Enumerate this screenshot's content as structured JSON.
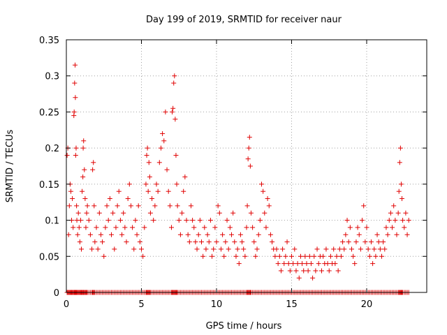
{
  "chart_data": {
    "type": "scatter",
    "title": "Day 199 of 2019, SRMTID for receiver naur",
    "xlabel": "GPS time / hours",
    "ylabel": "SRMTID / TECUs",
    "xlim": [
      0,
      24
    ],
    "ylim": [
      0,
      0.35
    ],
    "xticks": [
      0,
      5,
      10,
      15,
      20
    ],
    "xtick_labels": [
      "0",
      "5",
      "10",
      "15",
      "20"
    ],
    "yticks": [
      0,
      0.05,
      0.1,
      0.15,
      0.2,
      0.25,
      0.3,
      0.35
    ],
    "ytick_labels": [
      "0",
      "0.05",
      "0.1",
      "0.15",
      "0.2",
      "0.25",
      "0.3",
      "0.35"
    ],
    "grid": true,
    "marker": "+",
    "color": "#e00000",
    "series": [
      {
        "name": "SRMTID",
        "points": [
          [
            0.05,
            0.19
          ],
          [
            0.1,
            0.2
          ],
          [
            0.15,
            0.08
          ],
          [
            0.2,
            0.12
          ],
          [
            0.25,
            0.15
          ],
          [
            0.3,
            0.14
          ],
          [
            0.35,
            0.1
          ],
          [
            0.4,
            0.13
          ],
          [
            0.45,
            0.09
          ],
          [
            0.5,
            0.245
          ],
          [
            0.52,
            0.25
          ],
          [
            0.55,
            0.29
          ],
          [
            0.58,
            0.315
          ],
          [
            0.6,
            0.27
          ],
          [
            0.62,
            0.19
          ],
          [
            0.65,
            0.2
          ],
          [
            0.68,
            0.12
          ],
          [
            0.7,
            0.1
          ],
          [
            0.75,
            0.08
          ],
          [
            0.8,
            0.11
          ],
          [
            0.85,
            0.09
          ],
          [
            0.9,
            0.07
          ],
          [
            0.95,
            0.1
          ],
          [
            1.0,
            0.06
          ],
          [
            1.05,
            0.14
          ],
          [
            1.1,
            0.16
          ],
          [
            1.12,
            0.2
          ],
          [
            1.15,
            0.21
          ],
          [
            1.2,
            0.17
          ],
          [
            1.25,
            0.13
          ],
          [
            1.3,
            0.09
          ],
          [
            1.35,
            0.11
          ],
          [
            1.4,
            0.12
          ],
          [
            1.5,
            0.1
          ],
          [
            1.6,
            0.08
          ],
          [
            1.7,
            0.06
          ],
          [
            1.75,
            0.17
          ],
          [
            1.8,
            0.18
          ],
          [
            1.85,
            0.12
          ],
          [
            1.9,
            0.07
          ],
          [
            2.0,
            0.09
          ],
          [
            2.1,
            0.06
          ],
          [
            2.2,
            0.11
          ],
          [
            2.3,
            0.08
          ],
          [
            2.4,
            0.07
          ],
          [
            2.5,
            0.05
          ],
          [
            2.6,
            0.09
          ],
          [
            2.7,
            0.12
          ],
          [
            2.8,
            0.1
          ],
          [
            2.9,
            0.13
          ],
          [
            3.0,
            0.08
          ],
          [
            3.1,
            0.11
          ],
          [
            3.2,
            0.06
          ],
          [
            3.3,
            0.09
          ],
          [
            3.4,
            0.12
          ],
          [
            3.5,
            0.14
          ],
          [
            3.6,
            0.1
          ],
          [
            3.7,
            0.08
          ],
          [
            3.8,
            0.11
          ],
          [
            3.9,
            0.09
          ],
          [
            4.0,
            0.07
          ],
          [
            4.1,
            0.13
          ],
          [
            4.2,
            0.15
          ],
          [
            4.3,
            0.12
          ],
          [
            4.4,
            0.09
          ],
          [
            4.5,
            0.06
          ],
          [
            4.6,
            0.1
          ],
          [
            4.7,
            0.08
          ],
          [
            4.8,
            0.12
          ],
          [
            4.9,
            0.07
          ],
          [
            5.0,
            0.06
          ],
          [
            5.1,
            0.05
          ],
          [
            5.2,
            0.09
          ],
          [
            5.3,
            0.15
          ],
          [
            5.35,
            0.19
          ],
          [
            5.4,
            0.2
          ],
          [
            5.45,
            0.14
          ],
          [
            5.5,
            0.18
          ],
          [
            5.55,
            0.16
          ],
          [
            5.6,
            0.11
          ],
          [
            5.7,
            0.13
          ],
          [
            5.8,
            0.1
          ],
          [
            5.9,
            0.12
          ],
          [
            6.0,
            0.15
          ],
          [
            6.1,
            0.14
          ],
          [
            6.2,
            0.18
          ],
          [
            6.3,
            0.2
          ],
          [
            6.4,
            0.22
          ],
          [
            6.5,
            0.21
          ],
          [
            6.6,
            0.25
          ],
          [
            6.7,
            0.17
          ],
          [
            6.8,
            0.14
          ],
          [
            6.9,
            0.12
          ],
          [
            7.0,
            0.09
          ],
          [
            7.05,
            0.25
          ],
          [
            7.1,
            0.255
          ],
          [
            7.15,
            0.29
          ],
          [
            7.2,
            0.3
          ],
          [
            7.25,
            0.24
          ],
          [
            7.3,
            0.19
          ],
          [
            7.35,
            0.15
          ],
          [
            7.4,
            0.12
          ],
          [
            7.5,
            0.1
          ],
          [
            7.6,
            0.08
          ],
          [
            7.7,
            0.11
          ],
          [
            7.8,
            0.14
          ],
          [
            7.9,
            0.16
          ],
          [
            8.0,
            0.1
          ],
          [
            8.1,
            0.08
          ],
          [
            8.2,
            0.07
          ],
          [
            8.3,
            0.12
          ],
          [
            8.4,
            0.1
          ],
          [
            8.5,
            0.09
          ],
          [
            8.6,
            0.07
          ],
          [
            8.7,
            0.06
          ],
          [
            8.8,
            0.08
          ],
          [
            8.9,
            0.1
          ],
          [
            9.0,
            0.07
          ],
          [
            9.1,
            0.05
          ],
          [
            9.2,
            0.09
          ],
          [
            9.3,
            0.06
          ],
          [
            9.4,
            0.08
          ],
          [
            9.5,
            0.07
          ],
          [
            9.6,
            0.1
          ],
          [
            9.7,
            0.05
          ],
          [
            9.8,
            0.06
          ],
          [
            9.9,
            0.09
          ],
          [
            10.0,
            0.07
          ],
          [
            10.1,
            0.12
          ],
          [
            10.2,
            0.11
          ],
          [
            10.3,
            0.06
          ],
          [
            10.4,
            0.08
          ],
          [
            10.5,
            0.05
          ],
          [
            10.6,
            0.07
          ],
          [
            10.7,
            0.1
          ],
          [
            10.8,
            0.06
          ],
          [
            10.9,
            0.09
          ],
          [
            11.0,
            0.08
          ],
          [
            11.1,
            0.11
          ],
          [
            11.2,
            0.07
          ],
          [
            11.3,
            0.05
          ],
          [
            11.4,
            0.06
          ],
          [
            11.5,
            0.04
          ],
          [
            11.6,
            0.08
          ],
          [
            11.7,
            0.07
          ],
          [
            11.8,
            0.06
          ],
          [
            11.9,
            0.05
          ],
          [
            12.0,
            0.09
          ],
          [
            12.05,
            0.12
          ],
          [
            12.1,
            0.185
          ],
          [
            12.15,
            0.2
          ],
          [
            12.2,
            0.215
          ],
          [
            12.25,
            0.175
          ],
          [
            12.3,
            0.11
          ],
          [
            12.4,
            0.09
          ],
          [
            12.5,
            0.07
          ],
          [
            12.6,
            0.05
          ],
          [
            12.7,
            0.06
          ],
          [
            12.8,
            0.08
          ],
          [
            12.9,
            0.1
          ],
          [
            13.0,
            0.15
          ],
          [
            13.1,
            0.14
          ],
          [
            13.2,
            0.11
          ],
          [
            13.3,
            0.09
          ],
          [
            13.4,
            0.13
          ],
          [
            13.5,
            0.12
          ],
          [
            13.6,
            0.08
          ],
          [
            13.7,
            0.07
          ],
          [
            13.8,
            0.06
          ],
          [
            13.9,
            0.05
          ],
          [
            14.0,
            0.06
          ],
          [
            14.1,
            0.04
          ],
          [
            14.2,
            0.05
          ],
          [
            14.3,
            0.03
          ],
          [
            14.4,
            0.06
          ],
          [
            14.5,
            0.04
          ],
          [
            14.6,
            0.05
          ],
          [
            14.7,
            0.07
          ],
          [
            14.8,
            0.04
          ],
          [
            14.9,
            0.03
          ],
          [
            15.0,
            0.05
          ],
          [
            15.1,
            0.04
          ],
          [
            15.2,
            0.06
          ],
          [
            15.3,
            0.03
          ],
          [
            15.4,
            0.04
          ],
          [
            15.5,
            0.02
          ],
          [
            15.6,
            0.05
          ],
          [
            15.7,
            0.04
          ],
          [
            15.8,
            0.03
          ],
          [
            15.9,
            0.05
          ],
          [
            16.0,
            0.04
          ],
          [
            16.1,
            0.03
          ],
          [
            16.2,
            0.05
          ],
          [
            16.3,
            0.04
          ],
          [
            16.4,
            0.02
          ],
          [
            16.5,
            0.05
          ],
          [
            16.6,
            0.03
          ],
          [
            16.7,
            0.06
          ],
          [
            16.8,
            0.04
          ],
          [
            16.9,
            0.05
          ],
          [
            17.0,
            0.03
          ],
          [
            17.1,
            0.05
          ],
          [
            17.2,
            0.04
          ],
          [
            17.3,
            0.06
          ],
          [
            17.4,
            0.04
          ],
          [
            17.5,
            0.03
          ],
          [
            17.6,
            0.05
          ],
          [
            17.7,
            0.04
          ],
          [
            17.8,
            0.06
          ],
          [
            17.9,
            0.04
          ],
          [
            18.0,
            0.05
          ],
          [
            18.1,
            0.03
          ],
          [
            18.2,
            0.06
          ],
          [
            18.3,
            0.05
          ],
          [
            18.4,
            0.07
          ],
          [
            18.5,
            0.06
          ],
          [
            18.6,
            0.08
          ],
          [
            18.7,
            0.1
          ],
          [
            18.8,
            0.07
          ],
          [
            18.9,
            0.09
          ],
          [
            19.0,
            0.06
          ],
          [
            19.1,
            0.05
          ],
          [
            19.2,
            0.04
          ],
          [
            19.3,
            0.07
          ],
          [
            19.4,
            0.09
          ],
          [
            19.5,
            0.08
          ],
          [
            19.6,
            0.06
          ],
          [
            19.7,
            0.1
          ],
          [
            19.8,
            0.12
          ],
          [
            19.9,
            0.07
          ],
          [
            20.0,
            0.09
          ],
          [
            20.1,
            0.06
          ],
          [
            20.2,
            0.05
          ],
          [
            20.3,
            0.07
          ],
          [
            20.4,
            0.04
          ],
          [
            20.5,
            0.06
          ],
          [
            20.6,
            0.05
          ],
          [
            20.7,
            0.08
          ],
          [
            20.8,
            0.07
          ],
          [
            20.9,
            0.06
          ],
          [
            21.0,
            0.05
          ],
          [
            21.1,
            0.07
          ],
          [
            21.2,
            0.06
          ],
          [
            21.3,
            0.09
          ],
          [
            21.4,
            0.08
          ],
          [
            21.5,
            0.1
          ],
          [
            21.6,
            0.11
          ],
          [
            21.7,
            0.09
          ],
          [
            21.8,
            0.12
          ],
          [
            21.9,
            0.1
          ],
          [
            22.0,
            0.08
          ],
          [
            22.1,
            0.11
          ],
          [
            22.15,
            0.14
          ],
          [
            22.2,
            0.18
          ],
          [
            22.25,
            0.2
          ],
          [
            22.3,
            0.15
          ],
          [
            22.35,
            0.13
          ],
          [
            22.4,
            0.1
          ],
          [
            22.5,
            0.09
          ],
          [
            22.6,
            0.11
          ],
          [
            22.7,
            0.08
          ],
          [
            22.8,
            0.1
          ]
        ]
      }
    ]
  }
}
